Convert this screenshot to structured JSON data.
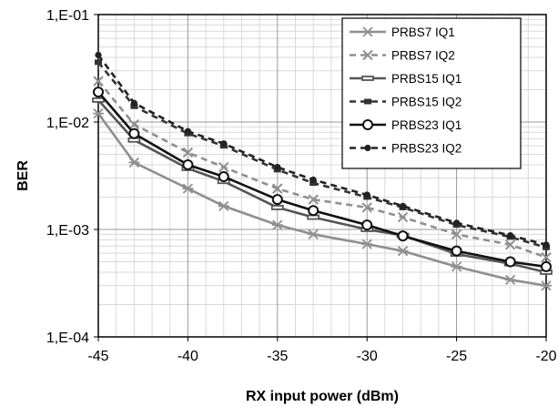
{
  "chart_data": {
    "type": "line",
    "title": "",
    "xlabel": "RX input power (dBm)",
    "ylabel": "BER",
    "xlim": [
      -45,
      -20
    ],
    "ylim": [
      0.0001,
      0.1
    ],
    "yscale": "log",
    "xticks": [
      -45,
      -40,
      -35,
      -30,
      -25,
      -20
    ],
    "xtick_labels": [
      "-45",
      "-40",
      "-35",
      "-30",
      "-25",
      "-20"
    ],
    "yticks": [
      0.1,
      0.01,
      0.001,
      0.0001
    ],
    "ytick_labels": [
      "1,E-01",
      "1,E-02",
      "1,E-03",
      "1,E-04"
    ],
    "grid": true,
    "legend_position": "top-right",
    "x": [
      -45,
      -43,
      -40,
      -38,
      -35,
      -33,
      -30,
      -28,
      -25,
      -22,
      -20
    ],
    "series": [
      {
        "name": "PRBS7 IQ1",
        "color": "#8f8f8f",
        "dashed": false,
        "marker": "asterisk",
        "values": [
          0.012,
          0.0042,
          0.0024,
          0.00165,
          0.0011,
          0.0009,
          0.00073,
          0.00063,
          0.00045,
          0.00034,
          0.0003
        ]
      },
      {
        "name": "PRBS7 IQ2",
        "color": "#8f8f8f",
        "dashed": true,
        "marker": "x",
        "values": [
          0.024,
          0.0095,
          0.0052,
          0.0038,
          0.0024,
          0.0019,
          0.0016,
          0.0013,
          0.0009,
          0.00072,
          0.00055
        ]
      },
      {
        "name": "PRBS15 IQ1",
        "color": "#555555",
        "dashed": false,
        "marker": "dash",
        "values": [
          0.016,
          0.0068,
          0.0037,
          0.0028,
          0.0016,
          0.0013,
          0.001,
          0.00088,
          0.00059,
          0.00048,
          0.0004
        ]
      },
      {
        "name": "PRBS15 IQ2",
        "color": "#333333",
        "dashed": true,
        "marker": "square",
        "values": [
          0.036,
          0.014,
          0.0078,
          0.006,
          0.0036,
          0.0027,
          0.002,
          0.0016,
          0.0011,
          0.00085,
          0.00068
        ]
      },
      {
        "name": "PRBS23 IQ1",
        "color": "#111111",
        "dashed": false,
        "marker": "circle-open",
        "values": [
          0.019,
          0.0078,
          0.004,
          0.0031,
          0.0019,
          0.0015,
          0.0011,
          0.00087,
          0.00063,
          0.0005,
          0.00045
        ]
      },
      {
        "name": "PRBS23 IQ2",
        "color": "#222222",
        "dashed": true,
        "marker": "dot",
        "values": [
          0.042,
          0.015,
          0.0082,
          0.0063,
          0.0038,
          0.0029,
          0.0021,
          0.00165,
          0.00115,
          0.00088,
          0.00072
        ]
      }
    ]
  }
}
